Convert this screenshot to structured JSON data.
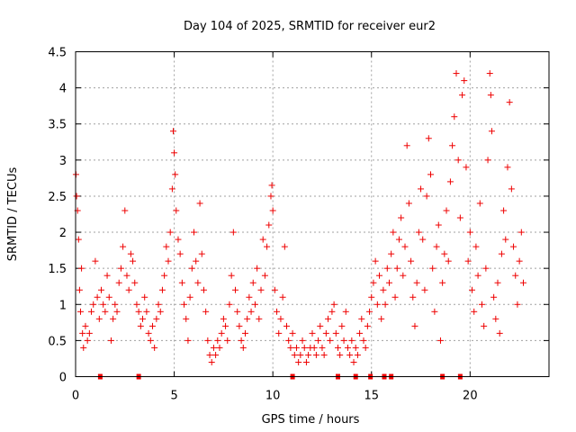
{
  "chart_data": {
    "type": "scatter",
    "title": "Day 104 of 2025, SRMTID for receiver eur2",
    "xlabel": "GPS time / hours",
    "ylabel": "SRMTID / TECUs",
    "xlim": [
      0,
      24
    ],
    "ylim": [
      0,
      4.5
    ],
    "xticks": [
      0,
      5,
      10,
      15,
      20
    ],
    "xtick_labels": [
      "0",
      "5",
      "10",
      "15",
      "20"
    ],
    "yticks": [
      0,
      0.5,
      1,
      1.5,
      2,
      2.5,
      3,
      3.5,
      4,
      4.5
    ],
    "ytick_labels": [
      "0",
      "0.5",
      "1",
      "1.5",
      "2",
      "2.5",
      "3",
      "3.5",
      "4",
      "4.5"
    ],
    "grid": true,
    "marker": "+",
    "color": "#ee0000",
    "series": [
      {
        "name": "SRMTID",
        "points": [
          [
            0.02,
            2.8
          ],
          [
            0.05,
            2.5
          ],
          [
            0.1,
            2.3
          ],
          [
            0.15,
            1.9
          ],
          [
            0.2,
            1.2
          ],
          [
            0.25,
            0.9
          ],
          [
            0.3,
            1.5
          ],
          [
            0.35,
            0.6
          ],
          [
            0.4,
            0.4
          ],
          [
            0.5,
            0.7
          ],
          [
            0.6,
            0.5
          ],
          [
            0.7,
            0.6
          ],
          [
            0.8,
            0.9
          ],
          [
            0.9,
            1.0
          ],
          [
            1.0,
            1.6
          ],
          [
            1.1,
            1.1
          ],
          [
            1.2,
            0.8
          ],
          [
            1.3,
            1.2
          ],
          [
            1.4,
            1.0
          ],
          [
            1.5,
            0.9
          ],
          [
            1.6,
            1.4
          ],
          [
            1.7,
            1.1
          ],
          [
            1.8,
            0.5
          ],
          [
            1.9,
            0.8
          ],
          [
            2.0,
            1.0
          ],
          [
            2.1,
            0.9
          ],
          [
            2.2,
            1.3
          ],
          [
            2.3,
            1.5
          ],
          [
            2.4,
            1.8
          ],
          [
            2.5,
            2.3
          ],
          [
            2.6,
            1.4
          ],
          [
            2.7,
            1.2
          ],
          [
            2.8,
            1.7
          ],
          [
            2.9,
            1.6
          ],
          [
            3.0,
            1.3
          ],
          [
            3.1,
            1.0
          ],
          [
            3.2,
            0.9
          ],
          [
            3.3,
            0.7
          ],
          [
            3.4,
            0.8
          ],
          [
            3.5,
            1.1
          ],
          [
            3.6,
            0.9
          ],
          [
            3.7,
            0.6
          ],
          [
            3.8,
            0.5
          ],
          [
            3.9,
            0.7
          ],
          [
            4.0,
            0.4
          ],
          [
            4.1,
            0.8
          ],
          [
            4.2,
            1.0
          ],
          [
            4.3,
            0.9
          ],
          [
            4.4,
            1.2
          ],
          [
            4.5,
            1.4
          ],
          [
            4.6,
            1.8
          ],
          [
            4.7,
            1.6
          ],
          [
            4.8,
            2.0
          ],
          [
            4.9,
            2.6
          ],
          [
            4.95,
            3.4
          ],
          [
            5.0,
            3.1
          ],
          [
            5.05,
            2.8
          ],
          [
            5.1,
            2.3
          ],
          [
            5.2,
            1.9
          ],
          [
            5.3,
            1.7
          ],
          [
            5.4,
            1.3
          ],
          [
            5.5,
            1.0
          ],
          [
            5.6,
            0.8
          ],
          [
            5.7,
            0.5
          ],
          [
            5.8,
            1.1
          ],
          [
            5.9,
            1.5
          ],
          [
            6.0,
            2.0
          ],
          [
            6.1,
            1.6
          ],
          [
            6.2,
            1.3
          ],
          [
            6.3,
            2.4
          ],
          [
            6.4,
            1.7
          ],
          [
            6.5,
            1.2
          ],
          [
            6.6,
            0.9
          ],
          [
            6.7,
            0.5
          ],
          [
            6.8,
            0.3
          ],
          [
            6.9,
            0.2
          ],
          [
            7.0,
            0.4
          ],
          [
            7.1,
            0.3
          ],
          [
            7.2,
            0.5
          ],
          [
            7.3,
            0.4
          ],
          [
            7.4,
            0.6
          ],
          [
            7.5,
            0.8
          ],
          [
            7.6,
            0.7
          ],
          [
            7.7,
            0.5
          ],
          [
            7.8,
            1.0
          ],
          [
            7.9,
            1.4
          ],
          [
            8.0,
            2.0
          ],
          [
            8.1,
            1.2
          ],
          [
            8.2,
            0.9
          ],
          [
            8.3,
            0.7
          ],
          [
            8.4,
            0.5
          ],
          [
            8.5,
            0.4
          ],
          [
            8.6,
            0.6
          ],
          [
            8.7,
            0.8
          ],
          [
            8.8,
            1.1
          ],
          [
            8.9,
            0.9
          ],
          [
            9.0,
            1.3
          ],
          [
            9.1,
            1.0
          ],
          [
            9.2,
            1.5
          ],
          [
            9.3,
            0.8
          ],
          [
            9.4,
            1.2
          ],
          [
            9.5,
            1.9
          ],
          [
            9.6,
            1.4
          ],
          [
            9.7,
            1.8
          ],
          [
            9.8,
            2.1
          ],
          [
            9.9,
            2.5
          ],
          [
            9.95,
            2.65
          ],
          [
            10.0,
            2.3
          ],
          [
            10.1,
            1.2
          ],
          [
            10.2,
            0.9
          ],
          [
            10.3,
            0.6
          ],
          [
            10.4,
            0.8
          ],
          [
            10.5,
            1.1
          ],
          [
            10.6,
            1.8
          ],
          [
            10.7,
            0.7
          ],
          [
            10.8,
            0.5
          ],
          [
            10.9,
            0.4
          ],
          [
            11.0,
            0.6
          ],
          [
            11.1,
            0.3
          ],
          [
            11.2,
            0.4
          ],
          [
            11.3,
            0.2
          ],
          [
            11.4,
            0.3
          ],
          [
            11.5,
            0.5
          ],
          [
            11.6,
            0.4
          ],
          [
            11.7,
            0.2
          ],
          [
            11.8,
            0.3
          ],
          [
            11.9,
            0.4
          ],
          [
            12.0,
            0.6
          ],
          [
            12.1,
            0.4
          ],
          [
            12.2,
            0.3
          ],
          [
            12.3,
            0.5
          ],
          [
            12.4,
            0.7
          ],
          [
            12.5,
            0.4
          ],
          [
            12.6,
            0.3
          ],
          [
            12.7,
            0.6
          ],
          [
            12.8,
            0.8
          ],
          [
            12.9,
            0.5
          ],
          [
            13.0,
            0.9
          ],
          [
            13.1,
            1.0
          ],
          [
            13.2,
            0.6
          ],
          [
            13.3,
            0.4
          ],
          [
            13.4,
            0.3
          ],
          [
            13.5,
            0.7
          ],
          [
            13.6,
            0.5
          ],
          [
            13.7,
            0.9
          ],
          [
            13.8,
            0.4
          ],
          [
            13.9,
            0.3
          ],
          [
            14.0,
            0.5
          ],
          [
            14.1,
            0.2
          ],
          [
            14.2,
            0.4
          ],
          [
            14.3,
            0.3
          ],
          [
            14.4,
            0.6
          ],
          [
            14.5,
            0.8
          ],
          [
            14.6,
            0.5
          ],
          [
            14.7,
            0.4
          ],
          [
            14.8,
            0.7
          ],
          [
            14.9,
            0.9
          ],
          [
            15.0,
            1.1
          ],
          [
            15.1,
            1.3
          ],
          [
            15.2,
            1.6
          ],
          [
            15.3,
            1.0
          ],
          [
            15.4,
            1.4
          ],
          [
            15.5,
            0.8
          ],
          [
            15.6,
            1.2
          ],
          [
            15.7,
            1.0
          ],
          [
            15.8,
            1.5
          ],
          [
            15.9,
            1.3
          ],
          [
            16.0,
            1.7
          ],
          [
            16.1,
            2.0
          ],
          [
            16.2,
            1.1
          ],
          [
            16.3,
            1.5
          ],
          [
            16.4,
            1.9
          ],
          [
            16.5,
            2.2
          ],
          [
            16.6,
            1.4
          ],
          [
            16.7,
            1.8
          ],
          [
            16.8,
            3.2
          ],
          [
            16.9,
            2.4
          ],
          [
            17.0,
            1.6
          ],
          [
            17.1,
            1.1
          ],
          [
            17.2,
            0.7
          ],
          [
            17.3,
            1.3
          ],
          [
            17.4,
            2.0
          ],
          [
            17.5,
            2.6
          ],
          [
            17.6,
            1.9
          ],
          [
            17.7,
            1.2
          ],
          [
            17.8,
            2.5
          ],
          [
            17.9,
            3.3
          ],
          [
            18.0,
            2.8
          ],
          [
            18.1,
            1.5
          ],
          [
            18.2,
            0.9
          ],
          [
            18.3,
            1.8
          ],
          [
            18.4,
            2.1
          ],
          [
            18.5,
            0.5
          ],
          [
            18.6,
            1.3
          ],
          [
            18.7,
            1.7
          ],
          [
            18.8,
            2.3
          ],
          [
            18.9,
            1.6
          ],
          [
            19.0,
            2.7
          ],
          [
            19.1,
            3.2
          ],
          [
            19.2,
            3.6
          ],
          [
            19.3,
            4.2
          ],
          [
            19.4,
            3.0
          ],
          [
            19.5,
            2.2
          ],
          [
            19.6,
            3.9
          ],
          [
            19.7,
            4.1
          ],
          [
            19.8,
            2.9
          ],
          [
            19.9,
            1.6
          ],
          [
            20.0,
            2.0
          ],
          [
            20.1,
            1.2
          ],
          [
            20.2,
            0.9
          ],
          [
            20.3,
            1.8
          ],
          [
            20.4,
            1.4
          ],
          [
            20.5,
            2.4
          ],
          [
            20.6,
            1.0
          ],
          [
            20.7,
            0.7
          ],
          [
            20.8,
            1.5
          ],
          [
            20.9,
            3.0
          ],
          [
            21.0,
            4.2
          ],
          [
            21.05,
            3.9
          ],
          [
            21.1,
            3.4
          ],
          [
            21.2,
            1.1
          ],
          [
            21.3,
            0.8
          ],
          [
            21.4,
            1.3
          ],
          [
            21.5,
            0.6
          ],
          [
            21.6,
            1.7
          ],
          [
            21.7,
            2.3
          ],
          [
            21.8,
            1.9
          ],
          [
            21.9,
            2.9
          ],
          [
            22.0,
            3.8
          ],
          [
            22.1,
            2.6
          ],
          [
            22.2,
            1.8
          ],
          [
            22.3,
            1.4
          ],
          [
            22.4,
            1.0
          ],
          [
            22.5,
            1.6
          ],
          [
            22.6,
            2.0
          ],
          [
            22.7,
            1.3
          ]
        ]
      }
    ],
    "outage_markers_hours": [
      1.25,
      3.2,
      11.0,
      13.3,
      14.2,
      14.95,
      15.65,
      16.0,
      18.6,
      19.5
    ]
  }
}
